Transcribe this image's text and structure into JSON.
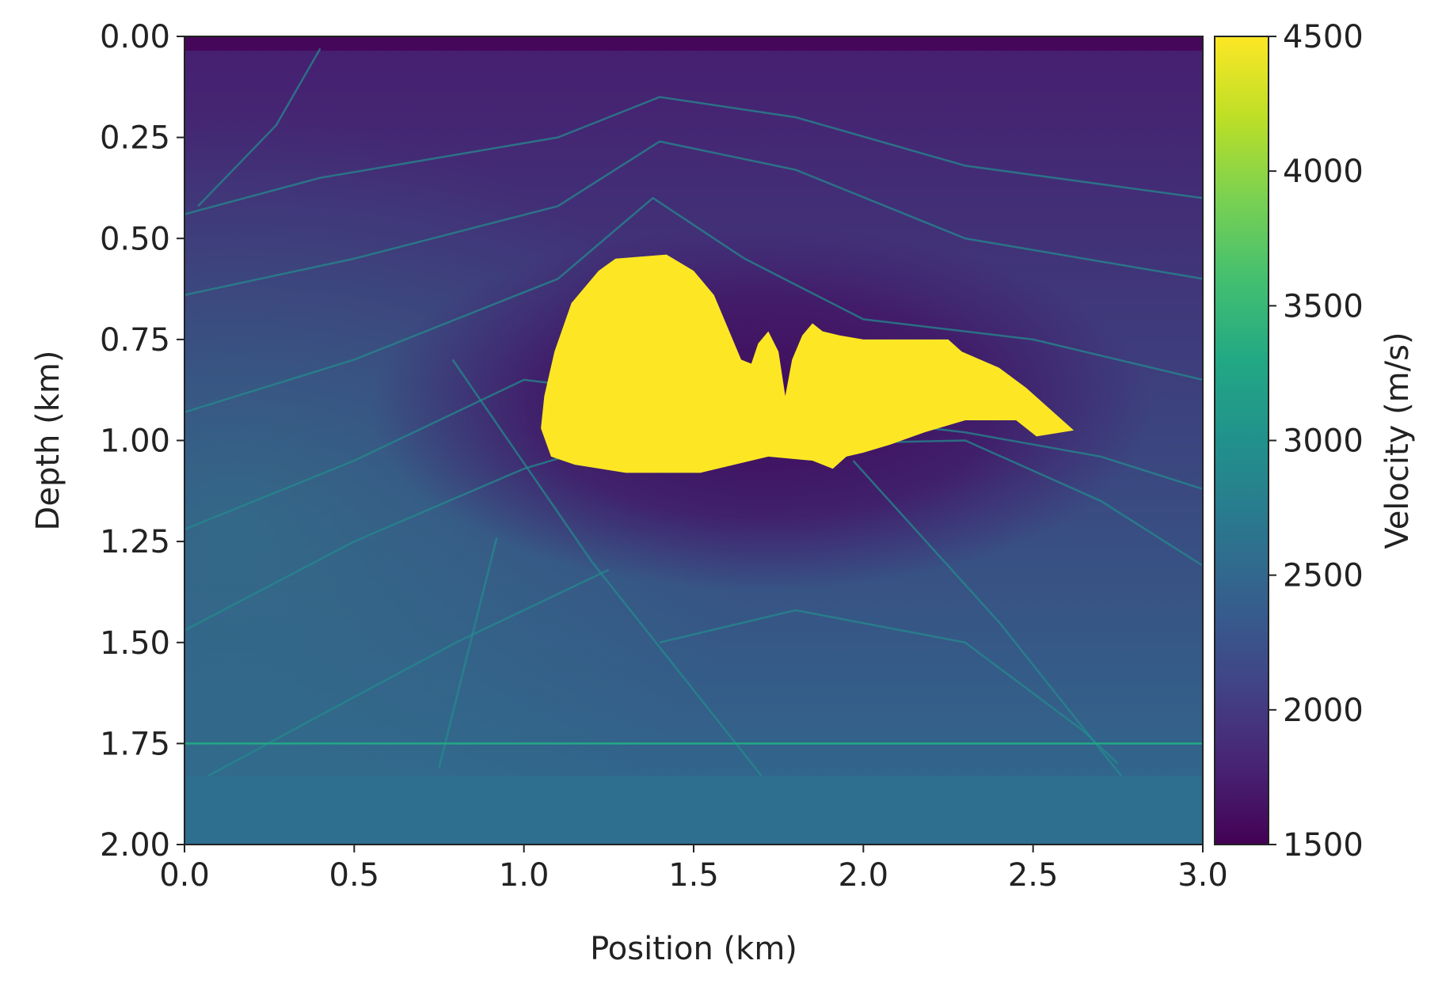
{
  "chart_data": {
    "type": "heatmap",
    "title": "",
    "xlabel": "Position (km)",
    "ylabel": "Depth (km)",
    "xlim": [
      0.0,
      3.0
    ],
    "ylim": [
      2.0,
      0.0
    ],
    "y_inverted": true,
    "x_ticks": [
      "0.0",
      "0.5",
      "1.0",
      "1.5",
      "2.0",
      "2.5",
      "3.0"
    ],
    "y_ticks": [
      "0.00",
      "0.25",
      "0.50",
      "0.75",
      "1.00",
      "1.25",
      "1.50",
      "1.75",
      "2.00"
    ],
    "colorbar": {
      "label": "Velocity (m/s)",
      "range": [
        1500,
        4500
      ],
      "ticks": [
        "1500",
        "2000",
        "2500",
        "3000",
        "3500",
        "4000",
        "4500"
      ],
      "colormap": "viridis"
    },
    "grid": false,
    "features": {
      "background_velocity_top": 1750,
      "background_velocity_bottom": 2550,
      "salt_body": {
        "velocity": 4500,
        "color": "#fde725",
        "outline": [
          [
            1.06,
            0.89
          ],
          [
            1.09,
            0.78
          ],
          [
            1.14,
            0.66
          ],
          [
            1.22,
            0.58
          ],
          [
            1.27,
            0.55
          ],
          [
            1.42,
            0.54
          ],
          [
            1.5,
            0.58
          ],
          [
            1.56,
            0.64
          ],
          [
            1.6,
            0.72
          ],
          [
            1.64,
            0.8
          ],
          [
            1.67,
            0.81
          ],
          [
            1.69,
            0.76
          ],
          [
            1.72,
            0.73
          ],
          [
            1.75,
            0.78
          ],
          [
            1.77,
            0.89
          ],
          [
            1.79,
            0.8
          ],
          [
            1.82,
            0.74
          ],
          [
            1.85,
            0.71
          ],
          [
            1.88,
            0.73
          ],
          [
            1.93,
            0.74
          ],
          [
            2.0,
            0.75
          ],
          [
            2.25,
            0.75
          ],
          [
            2.29,
            0.78
          ],
          [
            2.4,
            0.82
          ],
          [
            2.48,
            0.87
          ],
          [
            2.56,
            0.93
          ],
          [
            2.62,
            0.975
          ],
          [
            2.51,
            0.99
          ],
          [
            2.45,
            0.95
          ],
          [
            2.3,
            0.95
          ],
          [
            2.18,
            0.98
          ],
          [
            2.08,
            1.01
          ],
          [
            2.0,
            1.03
          ],
          [
            1.95,
            1.04
          ],
          [
            1.91,
            1.07
          ],
          [
            1.85,
            1.05
          ],
          [
            1.72,
            1.04
          ],
          [
            1.52,
            1.08
          ],
          [
            1.3,
            1.08
          ],
          [
            1.15,
            1.06
          ],
          [
            1.08,
            1.04
          ],
          [
            1.05,
            0.97
          ]
        ]
      },
      "low_velocity_halo": {
        "center": [
          1.7,
          0.92
        ],
        "velocity": 1550
      },
      "reflector_lines": [
        [
          [
            0.0,
            0.44
          ],
          [
            0.4,
            0.35
          ],
          [
            1.1,
            0.25
          ],
          [
            1.4,
            0.15
          ],
          [
            1.8,
            0.2
          ],
          [
            2.3,
            0.32
          ],
          [
            3.0,
            0.4
          ]
        ],
        [
          [
            0.0,
            0.64
          ],
          [
            0.5,
            0.55
          ],
          [
            1.1,
            0.42
          ],
          [
            1.4,
            0.26
          ],
          [
            1.8,
            0.33
          ],
          [
            2.3,
            0.5
          ],
          [
            3.0,
            0.6
          ]
        ],
        [
          [
            0.0,
            0.93
          ],
          [
            0.5,
            0.8
          ],
          [
            1.1,
            0.6
          ],
          [
            1.38,
            0.4
          ],
          [
            1.65,
            0.55
          ],
          [
            2.0,
            0.7
          ],
          [
            2.5,
            0.75
          ],
          [
            3.0,
            0.85
          ]
        ],
        [
          [
            0.0,
            1.22
          ],
          [
            0.5,
            1.05
          ],
          [
            1.0,
            0.85
          ],
          [
            2.3,
            0.98
          ],
          [
            2.7,
            1.04
          ],
          [
            3.0,
            1.12
          ]
        ],
        [
          [
            0.0,
            1.47
          ],
          [
            0.5,
            1.25
          ],
          [
            1.0,
            1.07
          ],
          [
            1.2,
            1.02
          ],
          [
            2.3,
            1.0
          ],
          [
            2.7,
            1.15
          ],
          [
            3.0,
            1.31
          ]
        ],
        [
          [
            0.07,
            1.83
          ],
          [
            0.4,
            1.68
          ],
          [
            0.8,
            1.5
          ],
          [
            1.25,
            1.32
          ]
        ],
        [
          [
            1.4,
            1.5
          ],
          [
            1.8,
            1.42
          ],
          [
            2.3,
            1.5
          ],
          [
            2.65,
            1.72
          ],
          [
            2.75,
            1.8
          ]
        ],
        [
          [
            0.79,
            0.8
          ],
          [
            1.2,
            1.3
          ],
          [
            1.7,
            1.83
          ]
        ],
        [
          [
            1.97,
            1.05
          ],
          [
            2.4,
            1.45
          ],
          [
            2.76,
            1.83
          ]
        ],
        [
          [
            0.75,
            1.81
          ],
          [
            0.92,
            1.24
          ]
        ],
        [
          [
            0.04,
            0.42
          ],
          [
            0.27,
            0.22
          ],
          [
            0.4,
            0.03
          ]
        ]
      ],
      "horizontal_reflector_depth": 1.75,
      "bottom_layer_top_depth": 1.83
    }
  }
}
